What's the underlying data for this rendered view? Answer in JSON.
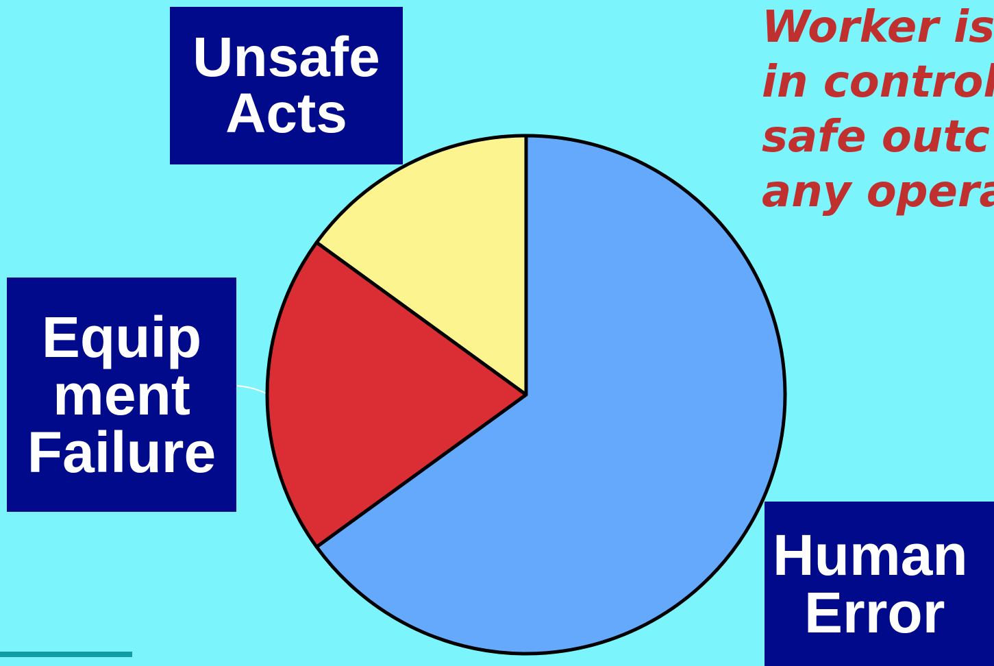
{
  "chart_data": {
    "type": "pie",
    "slices": [
      {
        "label": "Human Error",
        "value": 65,
        "color": "#65a9fd"
      },
      {
        "label": "Equipment Failure",
        "value": 20,
        "color": "#db2e34"
      },
      {
        "label": "Unsafe Acts",
        "value": 15,
        "color": "#fcf48f"
      }
    ],
    "labels": {
      "unsafe": [
        "Unsafe",
        "Acts"
      ],
      "equipment": [
        "Equip",
        "ment",
        "Failure"
      ],
      "human": [
        "Human",
        "Error"
      ]
    },
    "label_box_color": "#000a8a",
    "background_color": "#7cf4fc"
  },
  "quote": {
    "lines": [
      "Worker is",
      "in control",
      "safe outc",
      "any opera"
    ],
    "color": "#c0302f"
  }
}
